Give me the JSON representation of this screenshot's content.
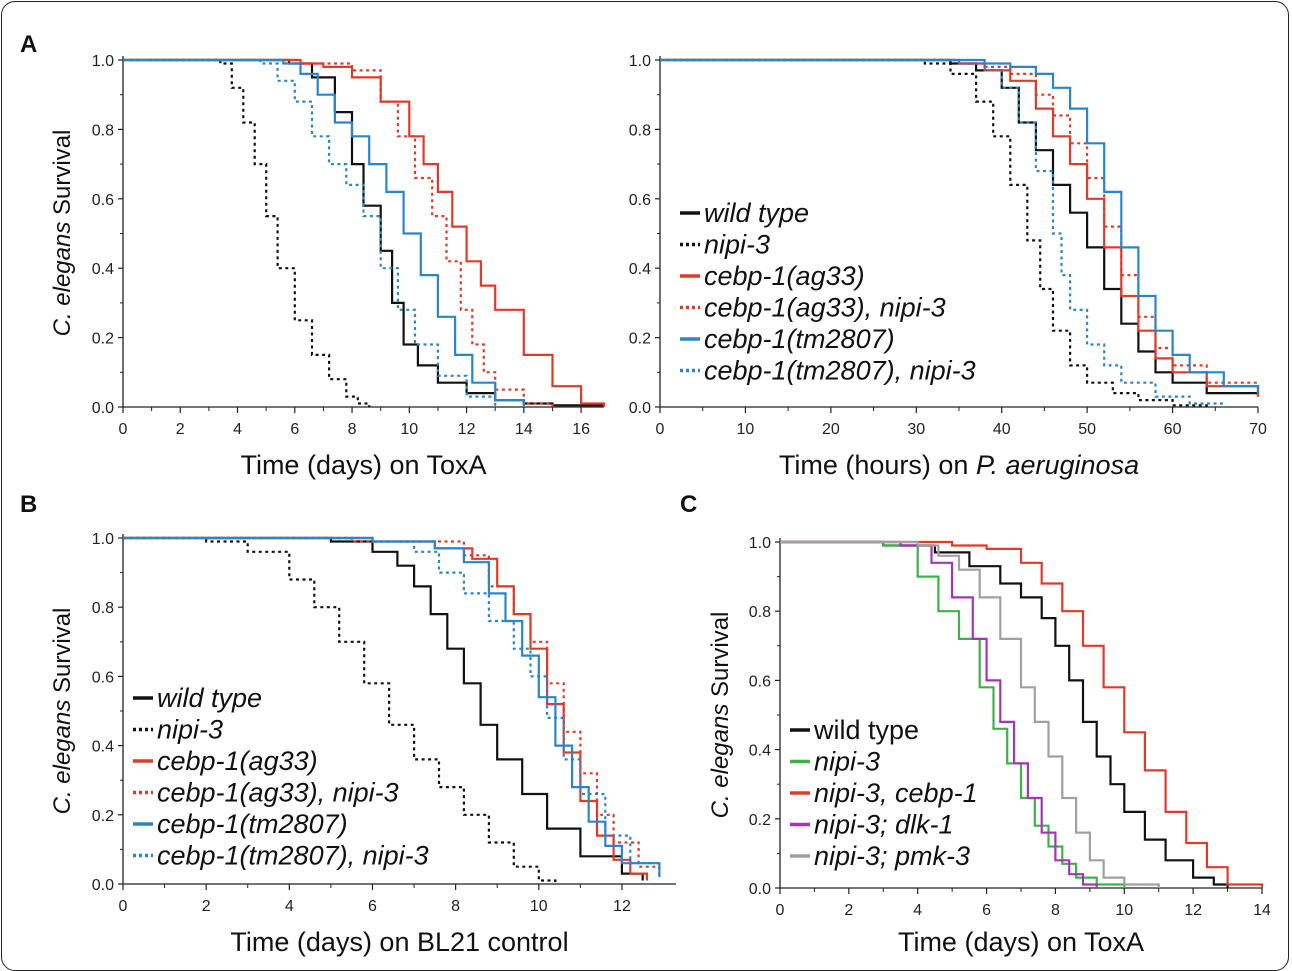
{
  "panel_letters": {
    "A": "A",
    "B": "B",
    "C": "C"
  },
  "colors": {
    "black": "#111111",
    "red": "#e03a2a",
    "blue": "#2a86c8",
    "green": "#3fb04a",
    "purple": "#a336b8",
    "gray": "#a0a0a0"
  },
  "chart_data": [
    {
      "id": "A-left",
      "type": "line",
      "panel": "A",
      "xlabel": "Time (days) on ToxA",
      "ylabel": "C. elegans Survival",
      "xlim": [
        0,
        16.8
      ],
      "ylim": [
        0,
        1.0
      ],
      "xticks": [
        0,
        2,
        4,
        6,
        8,
        10,
        12,
        14,
        16
      ],
      "yticks": [
        "0.0",
        "0.2",
        "0.4",
        "0.6",
        "0.8",
        "1.0"
      ],
      "legend": null,
      "series": [
        {
          "name": "wild type",
          "color": "#111111",
          "dash": false,
          "x": [
            0,
            5.8,
            6.6,
            7.4,
            8.0,
            8.4,
            9.0,
            9.4,
            9.8,
            10.3,
            11.0,
            12.0,
            13.0,
            14.0,
            15.0,
            16.8
          ],
          "y": [
            1.0,
            0.99,
            0.95,
            0.85,
            0.7,
            0.58,
            0.45,
            0.3,
            0.18,
            0.12,
            0.07,
            0.04,
            0.02,
            0.01,
            0.005,
            0.0
          ]
        },
        {
          "name": "nipi-3",
          "color": "#111111",
          "dash": true,
          "x": [
            0,
            3.4,
            3.8,
            4.2,
            4.6,
            5.0,
            5.4,
            6.0,
            6.6,
            7.2,
            7.8,
            8.2,
            8.6
          ],
          "y": [
            1.0,
            0.99,
            0.92,
            0.82,
            0.7,
            0.55,
            0.4,
            0.25,
            0.15,
            0.08,
            0.03,
            0.01,
            0.0
          ]
        },
        {
          "name": "cebp-1(ag33)",
          "color": "#e03a2a",
          "dash": false,
          "x": [
            0,
            6.2,
            7.0,
            8.0,
            9.0,
            10.0,
            10.5,
            11.0,
            11.5,
            12.0,
            12.5,
            13.0,
            14.0,
            15.0,
            16.0,
            16.8
          ],
          "y": [
            1.0,
            0.99,
            0.98,
            0.95,
            0.88,
            0.78,
            0.7,
            0.62,
            0.52,
            0.42,
            0.35,
            0.28,
            0.15,
            0.06,
            0.01,
            0.0
          ]
        },
        {
          "name": "cebp-1(ag33), nipi-3",
          "color": "#e03a2a",
          "dash": true,
          "x": [
            0,
            6.0,
            7.0,
            8.0,
            9.0,
            9.6,
            10.2,
            10.8,
            11.3,
            11.8,
            12.2,
            12.6,
            13.0,
            14.0,
            15.0
          ],
          "y": [
            1.0,
            0.99,
            0.99,
            0.97,
            0.88,
            0.78,
            0.66,
            0.55,
            0.42,
            0.28,
            0.18,
            0.1,
            0.05,
            0.01,
            0.0
          ]
        },
        {
          "name": "cebp-1(tm2807)",
          "color": "#2a86c8",
          "dash": false,
          "x": [
            0,
            5.6,
            6.2,
            6.8,
            7.4,
            8.0,
            8.6,
            9.2,
            9.8,
            10.4,
            11.0,
            11.6,
            12.2,
            13.0,
            14.0
          ],
          "y": [
            1.0,
            0.99,
            0.96,
            0.9,
            0.82,
            0.78,
            0.7,
            0.62,
            0.5,
            0.38,
            0.26,
            0.15,
            0.07,
            0.02,
            0.0
          ]
        },
        {
          "name": "cebp-1(tm2807), nipi-3",
          "color": "#2a86c8",
          "dash": true,
          "x": [
            0,
            4.8,
            5.4,
            6.0,
            6.6,
            7.2,
            7.8,
            8.4,
            9.0,
            9.6,
            10.2,
            11.0,
            12.0,
            13.0
          ],
          "y": [
            1.0,
            0.99,
            0.94,
            0.88,
            0.78,
            0.7,
            0.64,
            0.55,
            0.4,
            0.28,
            0.18,
            0.09,
            0.03,
            0.0
          ]
        }
      ]
    },
    {
      "id": "A-right",
      "type": "line",
      "panel": "A",
      "xlabel_prefix": "Time (hours) on ",
      "xlabel_italic": "P. aeruginosa",
      "ylabel": "",
      "xlim": [
        0,
        70
      ],
      "ylim": [
        0,
        1.0
      ],
      "xticks": [
        0,
        10,
        20,
        30,
        40,
        50,
        60,
        70
      ],
      "yticks": [
        "0.0",
        "0.2",
        "0.4",
        "0.6",
        "0.8",
        "1.0"
      ],
      "legend": "left",
      "series": [
        {
          "name": "wild type",
          "color": "#111111",
          "dash": false,
          "x": [
            0,
            34,
            37,
            40,
            42,
            44,
            46,
            48,
            50,
            52,
            54,
            56,
            58,
            60,
            64,
            70
          ],
          "y": [
            1.0,
            0.99,
            0.97,
            0.92,
            0.82,
            0.74,
            0.64,
            0.56,
            0.46,
            0.34,
            0.24,
            0.16,
            0.1,
            0.07,
            0.04,
            0.03
          ]
        },
        {
          "name": "nipi-3",
          "color": "#111111",
          "dash": true,
          "x": [
            0,
            31,
            34,
            37,
            39,
            41,
            43,
            44.5,
            46,
            48,
            50,
            53,
            56,
            60,
            64
          ],
          "y": [
            1.0,
            0.99,
            0.96,
            0.88,
            0.78,
            0.64,
            0.48,
            0.34,
            0.22,
            0.12,
            0.07,
            0.04,
            0.02,
            0.005,
            0.0
          ]
        },
        {
          "name": "cebp-1(ag33)",
          "color": "#e03a2a",
          "dash": false,
          "x": [
            0,
            35,
            38,
            41,
            44,
            46,
            48,
            50,
            52,
            54,
            56,
            58,
            60,
            64,
            70
          ],
          "y": [
            1.0,
            0.99,
            0.97,
            0.94,
            0.86,
            0.78,
            0.7,
            0.6,
            0.46,
            0.32,
            0.22,
            0.14,
            0.1,
            0.06,
            0.03
          ]
        },
        {
          "name": "cebp-1(ag33), nipi-3",
          "color": "#e03a2a",
          "dash": true,
          "x": [
            0,
            35,
            38,
            41,
            44,
            46,
            48,
            50,
            52,
            54,
            56,
            58,
            60,
            64,
            70
          ],
          "y": [
            1.0,
            0.99,
            0.98,
            0.96,
            0.9,
            0.84,
            0.76,
            0.66,
            0.52,
            0.38,
            0.26,
            0.17,
            0.12,
            0.07,
            0.03
          ]
        },
        {
          "name": "cebp-1(tm2807)",
          "color": "#2a86c8",
          "dash": false,
          "x": [
            0,
            38,
            41,
            44,
            46,
            48,
            50,
            52,
            54,
            56,
            58,
            60,
            62,
            66,
            70
          ],
          "y": [
            1.0,
            0.99,
            0.98,
            0.96,
            0.92,
            0.86,
            0.76,
            0.62,
            0.46,
            0.32,
            0.22,
            0.15,
            0.1,
            0.06,
            0.04
          ]
        },
        {
          "name": "cebp-1(tm2807), nipi-3",
          "color": "#2a86c8",
          "dash": true,
          "x": [
            0,
            35,
            38,
            40,
            42,
            44,
            46,
            47,
            48,
            50,
            52,
            54,
            58,
            62,
            66
          ],
          "y": [
            1.0,
            0.99,
            0.97,
            0.92,
            0.82,
            0.68,
            0.5,
            0.38,
            0.28,
            0.18,
            0.12,
            0.07,
            0.03,
            0.01,
            0.0
          ]
        }
      ]
    },
    {
      "id": "B",
      "type": "line",
      "panel": "B",
      "xlabel": "Time (days) on BL21 control",
      "ylabel": "C. elegans Survival",
      "xlim": [
        0,
        13.3
      ],
      "ylim": [
        0,
        1.0
      ],
      "xticks": [
        0,
        2,
        4,
        6,
        8,
        10,
        12
      ],
      "yticks": [
        "0.0",
        "0.2",
        "0.4",
        "0.6",
        "0.8",
        "1.0"
      ],
      "legend": "left",
      "series": [
        {
          "name": "wild type",
          "color": "#111111",
          "dash": false,
          "x": [
            0,
            5.0,
            6.0,
            6.6,
            7.0,
            7.4,
            7.8,
            8.2,
            8.6,
            9.0,
            9.6,
            10.2,
            11.0,
            12.0,
            12.5
          ],
          "y": [
            1.0,
            0.99,
            0.96,
            0.92,
            0.86,
            0.78,
            0.68,
            0.58,
            0.46,
            0.36,
            0.26,
            0.16,
            0.08,
            0.03,
            0.01
          ]
        },
        {
          "name": "nipi-3",
          "color": "#111111",
          "dash": true,
          "x": [
            0,
            2.0,
            3.0,
            4.0,
            4.6,
            5.2,
            5.8,
            6.4,
            7.0,
            7.6,
            8.2,
            8.8,
            9.4,
            10.0,
            10.4
          ],
          "y": [
            1.0,
            0.99,
            0.96,
            0.88,
            0.8,
            0.7,
            0.58,
            0.46,
            0.36,
            0.28,
            0.2,
            0.12,
            0.05,
            0.01,
            0.0
          ]
        },
        {
          "name": "cebp-1(ag33)",
          "color": "#e03a2a",
          "dash": false,
          "x": [
            0,
            6.0,
            7.5,
            8.4,
            9.0,
            9.4,
            9.8,
            10.2,
            10.6,
            11.0,
            11.4,
            11.8,
            12.2,
            12.6
          ],
          "y": [
            1.0,
            0.99,
            0.97,
            0.94,
            0.86,
            0.78,
            0.68,
            0.52,
            0.38,
            0.24,
            0.14,
            0.07,
            0.03,
            0.01
          ]
        },
        {
          "name": "cebp-1(ag33), nipi-3",
          "color": "#e03a2a",
          "dash": true,
          "x": [
            0,
            5.5,
            7.0,
            8.2,
            8.8,
            9.4,
            9.8,
            10.2,
            10.6,
            11.0,
            11.4,
            11.8,
            12.4,
            12.9
          ],
          "y": [
            1.0,
            0.99,
            0.99,
            0.95,
            0.86,
            0.78,
            0.7,
            0.58,
            0.44,
            0.32,
            0.2,
            0.12,
            0.05,
            0.02
          ]
        },
        {
          "name": "cebp-1(tm2807)",
          "color": "#2a86c8",
          "dash": false,
          "x": [
            0,
            6.0,
            7.5,
            8.2,
            8.8,
            9.2,
            9.6,
            10.0,
            10.4,
            10.8,
            11.2,
            11.6,
            12.0,
            12.9
          ],
          "y": [
            1.0,
            0.99,
            0.97,
            0.93,
            0.84,
            0.76,
            0.66,
            0.54,
            0.4,
            0.28,
            0.18,
            0.11,
            0.06,
            0.02
          ]
        },
        {
          "name": "cebp-1(tm2807), nipi-3",
          "color": "#2a86c8",
          "dash": true,
          "x": [
            0,
            6.0,
            7.0,
            7.6,
            8.2,
            8.8,
            9.4,
            9.8,
            10.2,
            10.6,
            11.0,
            11.6,
            12.2,
            12.9
          ],
          "y": [
            1.0,
            0.99,
            0.96,
            0.9,
            0.84,
            0.76,
            0.68,
            0.6,
            0.48,
            0.36,
            0.26,
            0.14,
            0.06,
            0.02
          ]
        }
      ]
    },
    {
      "id": "C",
      "type": "line",
      "panel": "C",
      "xlabel": "Time (days) on ToxA",
      "ylabel": "C. elegans Survival",
      "xlim": [
        0,
        14
      ],
      "ylim": [
        0,
        1.0
      ],
      "xticks": [
        0,
        2,
        4,
        6,
        8,
        10,
        12,
        14
      ],
      "yticks": [
        "0.0",
        "0.2",
        "0.4",
        "0.6",
        "0.8",
        "1.0"
      ],
      "legend": "left",
      "series": [
        {
          "name": "wild type",
          "color": "#111111",
          "dash": false,
          "italic": false,
          "x": [
            0,
            3.0,
            4.5,
            5.5,
            6.4,
            7.0,
            7.6,
            8.0,
            8.4,
            8.8,
            9.2,
            9.6,
            10.0,
            10.6,
            11.2,
            12.0,
            12.6,
            13.0
          ],
          "y": [
            1.0,
            0.99,
            0.97,
            0.93,
            0.88,
            0.84,
            0.78,
            0.7,
            0.6,
            0.48,
            0.38,
            0.3,
            0.22,
            0.14,
            0.08,
            0.03,
            0.01,
            0.0
          ]
        },
        {
          "name": "nipi-3",
          "color": "#3fb04a",
          "dash": false,
          "italic": true,
          "x": [
            0,
            3.0,
            4.0,
            4.6,
            5.2,
            5.8,
            6.2,
            6.6,
            7.0,
            7.4,
            7.8,
            8.2,
            8.6,
            9.2,
            10.0
          ],
          "y": [
            1.0,
            0.99,
            0.9,
            0.8,
            0.72,
            0.58,
            0.46,
            0.36,
            0.26,
            0.18,
            0.12,
            0.07,
            0.03,
            0.01,
            0.0
          ]
        },
        {
          "name": "nipi-3, cebp-1",
          "color": "#e03a2a",
          "dash": false,
          "italic": true,
          "x": [
            0,
            5.0,
            6.0,
            7.0,
            7.6,
            8.2,
            8.8,
            9.4,
            10.0,
            10.6,
            11.2,
            11.8,
            12.4,
            13.0,
            14.0
          ],
          "y": [
            1.0,
            0.99,
            0.98,
            0.94,
            0.88,
            0.8,
            0.7,
            0.58,
            0.45,
            0.34,
            0.22,
            0.13,
            0.06,
            0.01,
            0.0
          ]
        },
        {
          "name": "nipi-3; dlk-1",
          "color": "#a336b8",
          "dash": false,
          "italic": true,
          "x": [
            0,
            3.5,
            4.4,
            5.0,
            5.6,
            6.0,
            6.4,
            6.8,
            7.2,
            7.6,
            8.0,
            8.4,
            8.8,
            9.2
          ],
          "y": [
            1.0,
            0.99,
            0.94,
            0.84,
            0.72,
            0.6,
            0.48,
            0.36,
            0.26,
            0.16,
            0.08,
            0.04,
            0.01,
            0.0
          ]
        },
        {
          "name": "nipi-3; pmk-3",
          "color": "#a0a0a0",
          "dash": false,
          "italic": true,
          "x": [
            0,
            4.0,
            4.6,
            5.2,
            5.8,
            6.4,
            7.0,
            7.4,
            7.8,
            8.2,
            8.6,
            9.0,
            9.4,
            10.0,
            11.0
          ],
          "y": [
            1.0,
            0.99,
            0.96,
            0.92,
            0.84,
            0.72,
            0.58,
            0.48,
            0.38,
            0.26,
            0.16,
            0.08,
            0.03,
            0.01,
            0.0
          ]
        }
      ]
    }
  ]
}
